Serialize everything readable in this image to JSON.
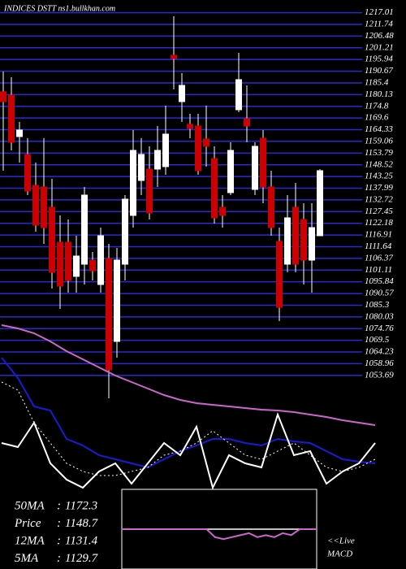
{
  "chart_data": [
    {
      "type": "candlestick",
      "title": "INDICES DSTT ns1.bullkhan.com",
      "open": [
        1181.36,
        1179.9,
        1161.23,
        1153.18,
        1139.27,
        1138.54,
        1129.39,
        1113.65,
        1113.65,
        1098.28,
        1103.77,
        1105.6,
        1094.62,
        1106.33,
        1069.0,
        1103.77,
        1125.73,
        1141.47,
        1146.59,
        1146.59,
        1147.69,
        1197.83,
        1176.97,
        1166.72,
        1165.99,
        1160.13,
        1151.35,
        1129.39,
        1135.98,
        1173.31,
        1169.28,
        1137.44,
        1160.5,
        1138.54,
        1114.02,
        1103.77,
        1129.39,
        1123.9,
        1105.6,
        1116.58
      ],
      "high": [
        1190.51,
        1187.95,
        1167.82,
        1160.5,
        1149.52,
        1160.5,
        1142.2,
        1125.73,
        1123.9,
        1116.58,
        1138.54,
        1109.26,
        1120.24,
        1112.92,
        1111.09,
        1134.88,
        1164.16,
        1160.5,
        1156.84,
        1165.99,
        1175.14,
        1215.4,
        1189.78,
        1171.48,
        1171.48,
        1175.14,
        1156.84,
        1134.88,
        1158.67,
        1198.93,
        1184.29,
        1158.67,
        1164.16,
        1145.86,
        1120.24,
        1134.88,
        1140.37,
        1131.22,
        1131.22,
        1146.59
      ],
      "low": [
        1145.86,
        1155.01,
        1149.52,
        1134.88,
        1118.41,
        1112.92,
        1092.79,
        1083.64,
        1090.96,
        1090.96,
        1094.62,
        1096.45,
        1090.96,
        1043.38,
        1061.68,
        1096.45,
        1120.24,
        1134.88,
        1123.9,
        1138.54,
        1144.03,
        1182.46,
        1167.82,
        1160.5,
        1144.03,
        1147.69,
        1122.07,
        1120.24,
        1134.88,
        1172.21,
        1158.67,
        1134.88,
        1131.22,
        1116.58,
        1078.15,
        1100.11,
        1100.11,
        1094.62,
        1090.96,
        1116.58
      ],
      "close": [
        1176.97,
        1158.67,
        1164.16,
        1136.71,
        1121.34,
        1120.24,
        1100.11,
        1093.89,
        1096.45,
        1107.43,
        1134.88,
        1100.84,
        1116.58,
        1056.19,
        1105.6,
        1133.05,
        1155.01,
        1153.18,
        1126.83,
        1155.01,
        1162.33,
        1196.37,
        1184.29,
        1164.89,
        1145.86,
        1156.84,
        1124.63,
        1125.73,
        1155.01,
        1186.85,
        1165.99,
        1156.84,
        1138.54,
        1120.24,
        1084.37,
        1124.63,
        1103.77,
        1105.6,
        1120.24,
        1145.86
      ],
      "up_color": "#ffffff",
      "down_color": "#cc0000",
      "ylim": [
        1050.7,
        1222.72
      ],
      "yticks": [
        1217.01,
        1211.74,
        1206.48,
        1201.21,
        1195.94,
        1190.67,
        1185.4,
        1180.13,
        1174.8,
        1169.6,
        1164.33,
        1159.06,
        1153.79,
        1148.52,
        1143.25,
        1137.99,
        1132.72,
        1127.45,
        1122.18,
        1116.91,
        1111.64,
        1106.37,
        1101.11,
        1095.84,
        1090.57,
        1085.3,
        1080.03,
        1074.76,
        1069.5,
        1064.23,
        1058.96,
        1053.69
      ],
      "grid": true,
      "grid_color": "#2a2ad0"
    },
    {
      "type": "line",
      "x": [
        0,
        1,
        2,
        3,
        4,
        5,
        6,
        7,
        8,
        9,
        10,
        11,
        12,
        13,
        14,
        15,
        16,
        17,
        18,
        19,
        20,
        21,
        22,
        23
      ],
      "xlim": [
        0,
        23
      ],
      "ylim": [
        0,
        230
      ],
      "series": [
        {
          "color": "#cc66cc",
          "values": [
            210,
            206,
            200,
            190,
            178,
            168,
            158,
            148,
            140,
            132,
            124,
            118,
            114,
            112,
            110,
            108,
            106,
            105,
            103,
            100,
            97,
            93,
            90,
            87
          ]
        },
        {
          "color": "#1a1ad8",
          "values": [
            170,
            145,
            110,
            105,
            70,
            62,
            50,
            45,
            40,
            35,
            45,
            55,
            62,
            70,
            70,
            65,
            62,
            70,
            67,
            65,
            55,
            45,
            42,
            40
          ]
        },
        {
          "color": "#ffffff",
          "values": [
            65,
            60,
            90,
            40,
            20,
            10,
            30,
            40,
            15,
            40,
            65,
            50,
            85,
            10,
            50,
            40,
            35,
            100,
            50,
            55,
            15,
            30,
            40,
            65
          ]
        },
        {
          "color": "#ffffff",
          "dash": true,
          "values": [
            140,
            130,
            90,
            65,
            40,
            30,
            25,
            25,
            30,
            35,
            50,
            55,
            65,
            80,
            65,
            50,
            45,
            55,
            65,
            50,
            35,
            30,
            35,
            45
          ]
        }
      ]
    },
    {
      "type": "macd",
      "title": "MACD",
      "annotation": "<<Live",
      "x": [
        0,
        1,
        2,
        3,
        4,
        5,
        6,
        7,
        8,
        9,
        10,
        11,
        12,
        13,
        14,
        15,
        16,
        17,
        18,
        19,
        20,
        21,
        22,
        23
      ],
      "xlim": [
        0,
        23
      ],
      "ylim": [
        -1,
        1
      ],
      "yticks": [
        0
      ],
      "series": [
        {
          "color": "#cc66cc",
          "values": [
            0,
            0,
            0,
            0,
            0,
            0,
            0,
            0,
            0,
            0,
            0,
            -0.2,
            -0.25,
            -0.2,
            -0.15,
            -0.1,
            -0.2,
            -0.15,
            -0.2,
            -0.1,
            -0.15,
            0,
            0,
            0
          ]
        }
      ]
    }
  ],
  "info": [
    {
      "label": "50MA",
      "value": 1172.3
    },
    {
      "label": "Price",
      "value": 1148.7
    },
    {
      "label": "12MA",
      "value": 1131.4
    },
    {
      "label": "5MA",
      "value": 1129.7
    }
  ]
}
